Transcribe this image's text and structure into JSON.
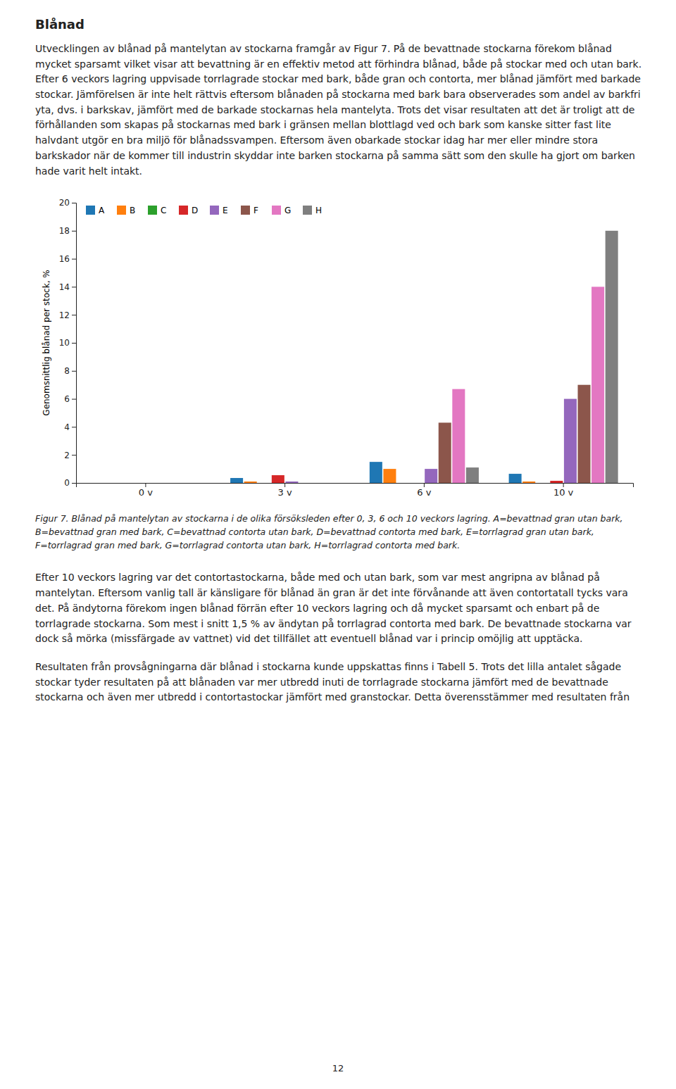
{
  "heading": "Blånad",
  "paragraphs": [
    "Utvecklingen av blånad på mantelytan av stockarna framgår av Figur 7. På de bevattnade stockarna förekom blånad mycket sparsamt vilket visar att bevattning är en effektiv metod att förhindra blånad, både på stockar med och utan bark. Efter 6 veckors lagring uppvisade torrlagrade stockar med bark, både gran och contorta, mer blånad jämfört med barkade stockar. Jämförelsen är inte helt rättvis eftersom blånaden på stockarna med bark bara observerades som andel av barkfri yta, dvs. i barkskav, jämfört med de barkade stockarnas hela mantelyta. Trots det visar resultaten att det är troligt att de förhållanden som skapas på stockarnas med bark i gränsen mellan blottlagd ved och bark som kanske sitter fast lite halvdant utgör en bra miljö för blånadssvampen. Eftersom även obarkade stockar idag har mer eller mindre stora barkskador när de kommer till industrin skyddar inte barken stockarna på samma sätt som den skulle ha gjort om barken hade varit helt intakt.",
    "Efter 10 veckors lagring var det contortastockarna, både med och utan bark, som var mest angripna av blånad på mantelytan. Eftersom vanlig tall är känsligare för blånad än gran är det inte förvånande att även contortatall tycks vara det. På ändytorna förekom ingen blånad förrän efter 10 veckors lagring och då mycket sparsamt och enbart på de torrlagrade stockarna. Som mest i snitt 1,5 % av ändytan på torrlagrad contorta med bark. De bevattnade stockarna var dock så mörka (missfärgade av vattnet) vid det tillfället att eventuell blånad var i princip omöjlig att upptäcka.",
    "Resultaten från provsågningarna där blånad i stockarna kunde uppskattas finns i Tabell 5. Trots det lilla antalet sågade stockar tyder resultaten på att blånaden var mer utbredd inuti de torrlagrade stockarna jämfört med de bevattnade stockarna och även mer utbredd i contortastockar jämfört med granstockar. Detta överensstämmer med resultaten från"
  ],
  "caption": "Figur 7. Blånad på mantelytan av stockarna i de olika försöksleden efter 0, 3, 6 och 10 veckors lagring. A=bevattnad gran utan bark, B=bevattnad gran med bark, C=bevattnad contorta utan bark, D=bevattnad contorta med bark, E=torrlagrad gran utan bark, F=torrlagrad gran med bark, G=torrlagrad contorta utan bark, H=torrlagrad contorta med bark.",
  "page_number": "12",
  "chart_data": {
    "type": "bar",
    "ylabel": "Genomsnittlig blånad per stock, %",
    "categories": [
      "0 v",
      "3 v",
      "6 v",
      "10 v"
    ],
    "series": [
      {
        "name": "A",
        "values": [
          0.0,
          0.35,
          1.5,
          0.65
        ]
      },
      {
        "name": "B",
        "values": [
          0.0,
          0.1,
          1.0,
          0.1
        ]
      },
      {
        "name": "C",
        "values": [
          0.0,
          0.0,
          0.0,
          0.0
        ]
      },
      {
        "name": "D",
        "values": [
          0.0,
          0.55,
          0.0,
          0.15
        ]
      },
      {
        "name": "E",
        "values": [
          0.0,
          0.1,
          1.0,
          6.0
        ]
      },
      {
        "name": "F",
        "values": [
          0.0,
          0.0,
          4.3,
          7.0
        ]
      },
      {
        "name": "G",
        "values": [
          0.0,
          0.0,
          6.7,
          14.0
        ]
      },
      {
        "name": "H",
        "values": [
          0.0,
          0.0,
          1.1,
          18.0
        ]
      }
    ],
    "ylim": [
      0,
      20
    ],
    "yticks": [
      0,
      2,
      4,
      6,
      8,
      10,
      12,
      14,
      16,
      18,
      20
    ],
    "grid": false,
    "legend": "upper left"
  }
}
